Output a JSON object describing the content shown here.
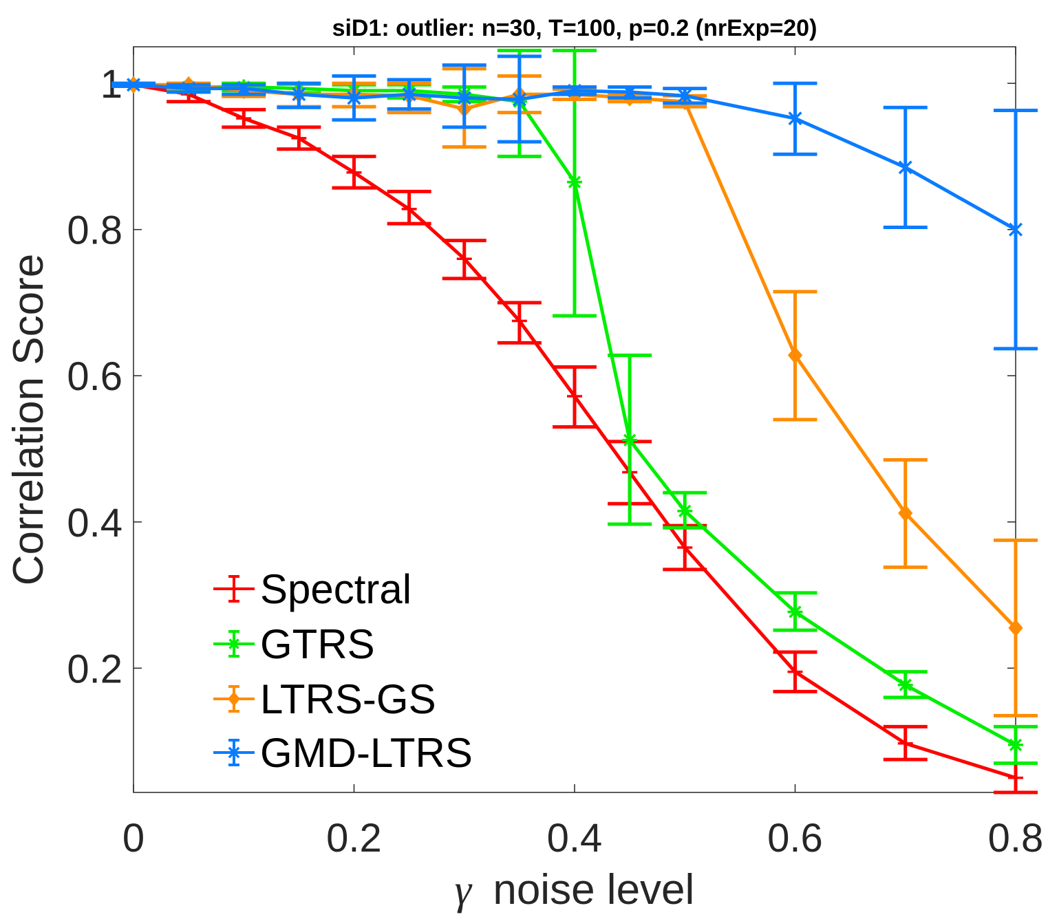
{
  "chart_data": {
    "type": "line",
    "title": "siD1: outlier: n=30, T=100, p=0.2 (nrExp=20)",
    "xlabel_symbol": "γ",
    "xlabel_text": "noise level",
    "ylabel": "Correlation Score",
    "xlim": [
      0,
      0.8
    ],
    "ylim": [
      0.03,
      1.05
    ],
    "xticks": [
      0,
      0.2,
      0.4,
      0.6,
      0.8
    ],
    "xtick_labels": [
      "0",
      "0.2",
      "0.4",
      "0.6",
      "0.8"
    ],
    "yticks": [
      0.2,
      0.4,
      0.6,
      0.8,
      1
    ],
    "ytick_labels": [
      "0.2",
      "0.4",
      "0.6",
      "0.8",
      "1"
    ],
    "grid": false,
    "legend_position": "bottom-left",
    "series": [
      {
        "name": "Spectral",
        "color": "#ff0000",
        "marker": "plus",
        "points": [
          {
            "x": 0.0,
            "y": 0.998,
            "lo": 0.996,
            "hi": 1.0
          },
          {
            "x": 0.05,
            "y": 0.985,
            "lo": 0.975,
            "hi": 0.995
          },
          {
            "x": 0.1,
            "y": 0.952,
            "lo": 0.94,
            "hi": 0.964
          },
          {
            "x": 0.15,
            "y": 0.925,
            "lo": 0.91,
            "hi": 0.94
          },
          {
            "x": 0.2,
            "y": 0.878,
            "lo": 0.857,
            "hi": 0.9
          },
          {
            "x": 0.25,
            "y": 0.828,
            "lo": 0.808,
            "hi": 0.852
          },
          {
            "x": 0.3,
            "y": 0.76,
            "lo": 0.733,
            "hi": 0.785
          },
          {
            "x": 0.35,
            "y": 0.675,
            "lo": 0.645,
            "hi": 0.7
          },
          {
            "x": 0.4,
            "y": 0.572,
            "lo": 0.53,
            "hi": 0.612
          },
          {
            "x": 0.45,
            "y": 0.468,
            "lo": 0.425,
            "hi": 0.51
          },
          {
            "x": 0.5,
            "y": 0.365,
            "lo": 0.335,
            "hi": 0.395
          },
          {
            "x": 0.6,
            "y": 0.195,
            "lo": 0.168,
            "hi": 0.222
          },
          {
            "x": 0.7,
            "y": 0.097,
            "lo": 0.075,
            "hi": 0.12
          },
          {
            "x": 0.8,
            "y": 0.05,
            "lo": 0.03,
            "hi": 0.07
          }
        ]
      },
      {
        "name": "GTRS",
        "color": "#00ee00",
        "marker": "asterisk",
        "points": [
          {
            "x": 0.0,
            "y": 0.998,
            "lo": 0.996,
            "hi": 1.0
          },
          {
            "x": 0.05,
            "y": 0.995,
            "lo": 0.99,
            "hi": 1.0
          },
          {
            "x": 0.1,
            "y": 0.995,
            "lo": 0.99,
            "hi": 1.0
          },
          {
            "x": 0.15,
            "y": 0.993,
            "lo": 0.987,
            "hi": 0.999
          },
          {
            "x": 0.2,
            "y": 0.99,
            "lo": 0.982,
            "hi": 0.998
          },
          {
            "x": 0.25,
            "y": 0.99,
            "lo": 0.98,
            "hi": 0.998
          },
          {
            "x": 0.3,
            "y": 0.985,
            "lo": 0.975,
            "hi": 0.995
          },
          {
            "x": 0.35,
            "y": 0.975,
            "lo": 0.9,
            "hi": 1.045
          },
          {
            "x": 0.4,
            "y": 0.865,
            "lo": 0.682,
            "hi": 1.045
          },
          {
            "x": 0.45,
            "y": 0.512,
            "lo": 0.397,
            "hi": 0.628
          },
          {
            "x": 0.5,
            "y": 0.415,
            "lo": 0.392,
            "hi": 0.44
          },
          {
            "x": 0.6,
            "y": 0.277,
            "lo": 0.252,
            "hi": 0.303
          },
          {
            "x": 0.7,
            "y": 0.177,
            "lo": 0.16,
            "hi": 0.195
          },
          {
            "x": 0.8,
            "y": 0.095,
            "lo": 0.07,
            "hi": 0.12
          }
        ]
      },
      {
        "name": "LTRS-GS",
        "color": "#ff8c00",
        "marker": "diamond",
        "points": [
          {
            "x": 0.0,
            "y": 0.998,
            "lo": 0.996,
            "hi": 1.0
          },
          {
            "x": 0.05,
            "y": 0.998,
            "lo": 0.993,
            "hi": 1.0
          },
          {
            "x": 0.1,
            "y": 0.99,
            "lo": 0.982,
            "hi": 0.998
          },
          {
            "x": 0.15,
            "y": 0.985,
            "lo": 0.968,
            "hi": 1.0
          },
          {
            "x": 0.2,
            "y": 0.985,
            "lo": 0.968,
            "hi": 1.0
          },
          {
            "x": 0.25,
            "y": 0.983,
            "lo": 0.96,
            "hi": 1.0
          },
          {
            "x": 0.3,
            "y": 0.965,
            "lo": 0.913,
            "hi": 1.02
          },
          {
            "x": 0.35,
            "y": 0.985,
            "lo": 0.96,
            "hi": 1.01
          },
          {
            "x": 0.4,
            "y": 0.985,
            "lo": 0.978,
            "hi": 0.992
          },
          {
            "x": 0.45,
            "y": 0.98,
            "lo": 0.975,
            "hi": 0.985
          },
          {
            "x": 0.5,
            "y": 0.975,
            "lo": 0.968,
            "hi": 0.983
          },
          {
            "x": 0.6,
            "y": 0.628,
            "lo": 0.54,
            "hi": 0.715
          },
          {
            "x": 0.7,
            "y": 0.412,
            "lo": 0.338,
            "hi": 0.485
          },
          {
            "x": 0.8,
            "y": 0.255,
            "lo": 0.135,
            "hi": 0.375
          }
        ]
      },
      {
        "name": "GMD-LTRS",
        "color": "#0a7cff",
        "marker": "x",
        "points": [
          {
            "x": 0.0,
            "y": 0.998,
            "lo": 0.996,
            "hi": 1.0
          },
          {
            "x": 0.05,
            "y": 0.993,
            "lo": 0.988,
            "hi": 0.998
          },
          {
            "x": 0.1,
            "y": 0.993,
            "lo": 0.985,
            "hi": 0.998
          },
          {
            "x": 0.15,
            "y": 0.985,
            "lo": 0.967,
            "hi": 1.0
          },
          {
            "x": 0.2,
            "y": 0.98,
            "lo": 0.95,
            "hi": 1.01
          },
          {
            "x": 0.25,
            "y": 0.985,
            "lo": 0.965,
            "hi": 1.005
          },
          {
            "x": 0.3,
            "y": 0.98,
            "lo": 0.94,
            "hi": 1.025
          },
          {
            "x": 0.35,
            "y": 0.978,
            "lo": 0.92,
            "hi": 1.037
          },
          {
            "x": 0.4,
            "y": 0.99,
            "lo": 0.985,
            "hi": 0.995
          },
          {
            "x": 0.45,
            "y": 0.988,
            "lo": 0.98,
            "hi": 0.995
          },
          {
            "x": 0.5,
            "y": 0.983,
            "lo": 0.973,
            "hi": 0.993
          },
          {
            "x": 0.6,
            "y": 0.952,
            "lo": 0.903,
            "hi": 1.0
          },
          {
            "x": 0.7,
            "y": 0.885,
            "lo": 0.803,
            "hi": 0.967
          },
          {
            "x": 0.8,
            "y": 0.8,
            "lo": 0.637,
            "hi": 0.963
          }
        ]
      }
    ]
  }
}
